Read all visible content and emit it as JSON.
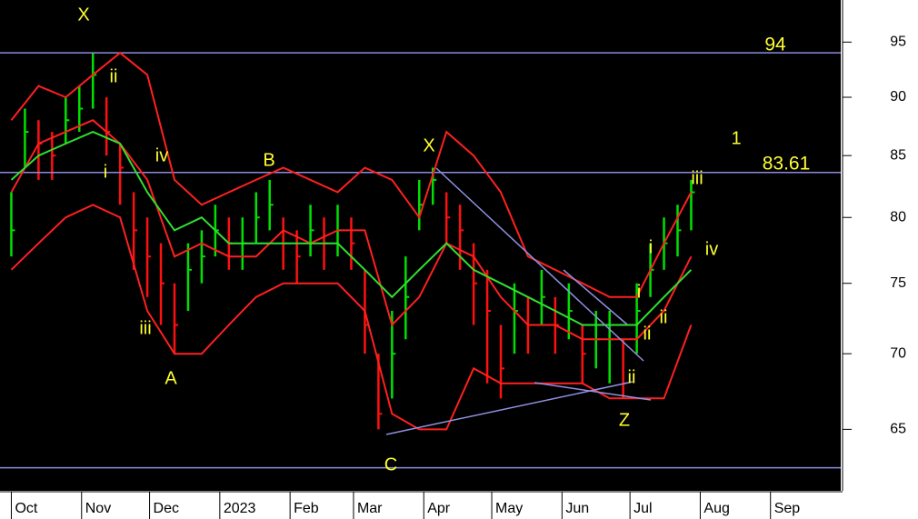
{
  "chart_data": {
    "type": "ohlc",
    "log_scale": true,
    "ylim": [
      61.2,
      99
    ],
    "yticks": [
      65,
      70,
      75,
      80,
      85,
      90,
      95
    ],
    "xlim": [
      -5,
      366
    ],
    "xticks": [
      {
        "value": 0,
        "label": "Oct"
      },
      {
        "value": 31,
        "label": "Nov"
      },
      {
        "value": 61,
        "label": "Dec"
      },
      {
        "value": 92,
        "label": "2023"
      },
      {
        "value": 123,
        "label": "Feb"
      },
      {
        "value": 151,
        "label": "Mar"
      },
      {
        "value": 182,
        "label": "Apr"
      },
      {
        "value": 212,
        "label": "May"
      },
      {
        "value": 243,
        "label": "Jun"
      },
      {
        "value": 273,
        "label": "Jul"
      },
      {
        "value": 304,
        "label": "Aug"
      },
      {
        "value": 335,
        "label": "Sep"
      }
    ],
    "up_color": "#00e000",
    "down_color": "#ff1010",
    "x": [
      0,
      6,
      12,
      18,
      24,
      30,
      36,
      42,
      48,
      54,
      60,
      66,
      72,
      78,
      84,
      90,
      96,
      102,
      108,
      114,
      120,
      126,
      132,
      138,
      144,
      150,
      156,
      162,
      168,
      174,
      180,
      186,
      192,
      198,
      204,
      210,
      216,
      222,
      228,
      234,
      240,
      246,
      252,
      258,
      264,
      270,
      276,
      282,
      288,
      294,
      300
    ],
    "high": [
      82,
      89,
      88,
      87,
      90,
      91,
      94,
      90,
      86,
      82,
      80,
      78,
      75,
      78,
      79,
      81,
      80,
      80,
      82,
      83,
      80,
      79,
      81,
      80,
      81,
      80,
      76,
      70,
      73,
      77,
      83,
      84,
      82,
      81,
      78,
      76,
      72,
      75,
      74,
      76,
      74,
      75,
      72,
      73,
      73,
      71,
      75,
      78,
      80,
      81,
      83
    ],
    "low": [
      77,
      84,
      83,
      83,
      86,
      87,
      89,
      85,
      81,
      76,
      74,
      72,
      70,
      73,
      75,
      77,
      76,
      76,
      78,
      79,
      76,
      75,
      77,
      76,
      77,
      76,
      70,
      65,
      67,
      71,
      79,
      81,
      78,
      76,
      72,
      68,
      67,
      70,
      70,
      72,
      70,
      71,
      68,
      69,
      68,
      67,
      70,
      74,
      76,
      77,
      79
    ],
    "close": [
      79,
      87,
      86,
      85,
      88,
      89,
      92,
      87,
      84,
      79,
      77,
      75,
      72,
      76,
      77,
      79,
      78,
      78,
      80,
      81,
      78,
      77,
      79,
      78,
      79,
      78,
      72,
      66,
      70,
      74,
      81,
      83,
      80,
      79,
      75,
      73,
      69,
      73,
      72,
      74,
      72,
      73,
      70,
      71,
      71,
      68,
      73,
      76,
      78,
      79,
      82
    ],
    "overlay_x": [
      0,
      12,
      24,
      36,
      48,
      60,
      72,
      84,
      96,
      108,
      120,
      132,
      144,
      156,
      168,
      180,
      192,
      204,
      216,
      228,
      240,
      252,
      264,
      276,
      288,
      300
    ],
    "overlays": [
      {
        "color": "#ff2020",
        "values": [
          88,
          91,
          90,
          92,
          94,
          92,
          83,
          81,
          82,
          83,
          84,
          83,
          82,
          84,
          83,
          80,
          87,
          85,
          82,
          77,
          76,
          75,
          74,
          74,
          78,
          82
        ]
      },
      {
        "color": "#ff2020",
        "values": [
          76,
          78,
          80,
          81,
          80,
          73,
          70,
          70,
          72,
          74,
          75,
          75,
          75,
          73,
          66,
          65,
          65,
          69,
          68,
          68,
          68,
          68,
          67,
          67,
          67,
          72
        ]
      },
      {
        "color": "#ff2020",
        "values": [
          82,
          86,
          87,
          88,
          86,
          83,
          77,
          78,
          77,
          77,
          79,
          78,
          79,
          79,
          72,
          74,
          78,
          77,
          74,
          72,
          72,
          71,
          71,
          71,
          73,
          77
        ]
      },
      {
        "color": "#30e030",
        "values": [
          83,
          85,
          86,
          87,
          86,
          82,
          79,
          80,
          78,
          78,
          78,
          78,
          78,
          76,
          74,
          76,
          78,
          76,
          75,
          74,
          73,
          72,
          72,
          72,
          74,
          76
        ]
      }
    ],
    "levels": [
      94,
      83.61,
      62.6
    ],
    "level_labels_shown": [
      true,
      true,
      false
    ],
    "level_color": "#8c8ce0",
    "annotations": [
      "X",
      "ii",
      "i",
      "iv",
      "iii",
      "A",
      "B",
      "X",
      "C",
      "Z",
      "ii",
      "i",
      "i",
      "ii",
      "ii",
      "iii",
      "iv",
      "1"
    ],
    "annotation_color": "#ffff30"
  }
}
